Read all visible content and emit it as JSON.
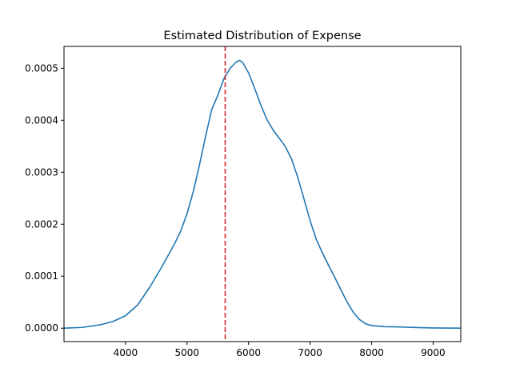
{
  "chart_data": {
    "type": "line",
    "title": "Estimated Distribution of Expense",
    "xlabel": "",
    "ylabel": "",
    "xlim": [
      3000,
      9450
    ],
    "ylim": [
      -2.58e-05,
      0.000542
    ],
    "x_ticks": [
      4000,
      5000,
      6000,
      7000,
      8000,
      9000
    ],
    "x_tick_labels": [
      "4000",
      "5000",
      "6000",
      "7000",
      "8000",
      "9000"
    ],
    "y_ticks": [
      0,
      0.0001,
      0.0002,
      0.0003,
      0.0004,
      0.0005
    ],
    "y_tick_labels": [
      "0.0000",
      "0.0001",
      "0.0002",
      "0.0003",
      "0.0004",
      "0.0005"
    ],
    "grid": false,
    "series": [
      {
        "color": "#1f77b4",
        "x": [
          3000,
          3300,
          3600,
          3800,
          4000,
          4200,
          4400,
          4600,
          4800,
          4900,
          5000,
          5100,
          5200,
          5300,
          5400,
          5500,
          5600,
          5700,
          5800,
          5850,
          5900,
          6000,
          6100,
          6200,
          6300,
          6400,
          6500,
          6600,
          6700,
          6800,
          6900,
          7000,
          7100,
          7200,
          7300,
          7400,
          7500,
          7600,
          7700,
          7800,
          7900,
          8000,
          8200,
          8400,
          8600,
          8800,
          9000,
          9200,
          9450
        ],
        "y": [
          0.0,
          1.5e-06,
          6.8e-06,
          1.3e-05,
          2.4e-05,
          4.5e-05,
          8e-05,
          0.00012,
          0.000163,
          0.000188,
          0.00022,
          0.000262,
          0.000313,
          0.000368,
          0.00042,
          0.000448,
          0.00048,
          0.0005,
          0.000512,
          0.000515,
          0.000512,
          0.000491,
          0.000461,
          0.000429,
          0.000401,
          0.000381,
          0.000365,
          0.000349,
          0.000325,
          0.00029,
          0.000249,
          0.000207,
          0.000171,
          0.000145,
          0.000121,
          9.8e-05,
          7.4e-05,
          5.1e-05,
          3.1e-05,
          1.7e-05,
          8.7e-06,
          5e-06,
          3e-06,
          2.5e-06,
          1.8e-06,
          1e-06,
          5e-07,
          2e-07,
          0.0
        ]
      }
    ],
    "reference_line": {
      "orientation": "vertical",
      "x": 5620,
      "color": "#d62728",
      "style": "dashed"
    }
  }
}
